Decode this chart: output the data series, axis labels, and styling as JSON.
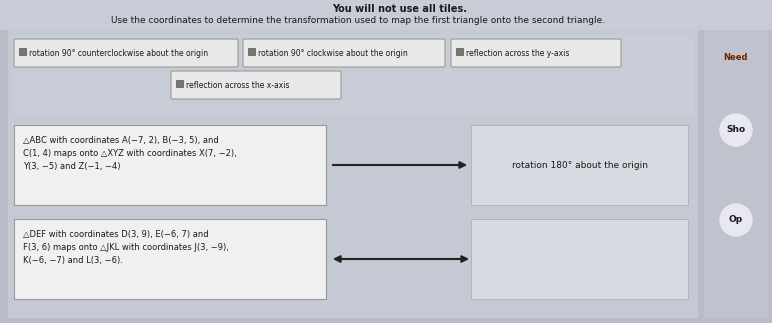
{
  "title_top": "You will not use all tiles.",
  "subtitle": "Use the coordinates to determine the transformation used to map the first triangle onto the second triangle.",
  "bg_outer": "#b8bcc8",
  "bg_main": "#c5c9d4",
  "bg_panel": "#cdd0da",
  "white_box": "#f0f0f0",
  "answer_box": "#d8dae2",
  "btn_box": "#e8e8e8",
  "right_sidebar_bg": "#c0c3ce",
  "right_circle_bg": "#e8e8f0",
  "buttons": [
    "rotation 90° counterclockwise about the origin",
    "rotation 90° clockwise about the origin",
    "reflection across the y-axis",
    "reflection across the x-axis"
  ],
  "problem1_text": "△ABC with coordinates A(−7, 2), B(−3, 5), and\nC(1, 4) maps onto △XYZ with coordinates X(7, −2),\nY(3, −5) and Z(−1, −4)",
  "answer1_text": "rotation 180° about the origin",
  "problem2_text": "△DEF with coordinates D(3, 9), E(−6, 7) and\nF(3, 6) maps onto △JKL with coordinates J(3, −9),\nK(−6, −7) and L(3, −6).",
  "answer2_text": "",
  "right_labels": [
    "Need",
    "Sho",
    "Op"
  ],
  "text_color": "#1a1a1a",
  "label_brown": "#6b2800",
  "arrow_color": "#222222"
}
